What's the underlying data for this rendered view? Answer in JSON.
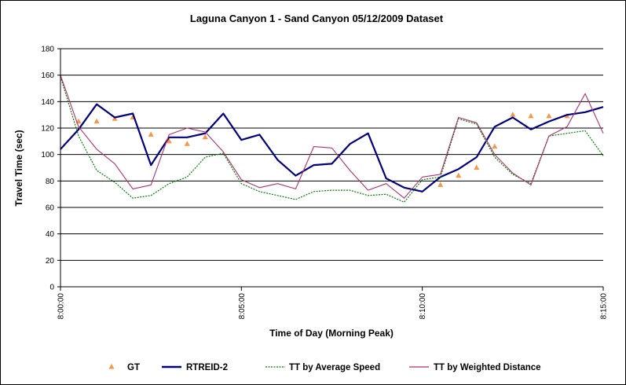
{
  "chart_data": {
    "type": "line",
    "title": "Laguna Canyon 1 - Sand Canyon 05/12/2009 Dataset",
    "xlabel": "Time of Day (Morning Peak)",
    "ylabel": "Travel Time (sec)",
    "ylim": [
      0,
      180
    ],
    "yticks": [
      "0",
      "20",
      "40",
      "60",
      "80",
      "100",
      "120",
      "140",
      "160",
      "180"
    ],
    "xlim": [
      "8:00:00",
      "8:15:00"
    ],
    "xticks": [
      "8:00:00",
      "8:05:00",
      "8:10:00",
      "8:15:00"
    ],
    "grid": "horizontal",
    "legend_position": "bottom",
    "series": [
      {
        "name": "GT",
        "style": "marker",
        "color": "#f79646",
        "x": [
          "8:00:30",
          "8:01:00",
          "8:01:30",
          "8:02:00",
          "8:02:30",
          "8:03:00",
          "8:03:30",
          "8:04:00",
          "8:10:30",
          "8:11:00",
          "8:11:30",
          "8:12:00",
          "8:12:30",
          "8:13:00",
          "8:13:30",
          "8:14:00"
        ],
        "values": [
          125,
          125,
          127,
          128,
          115,
          110,
          108,
          113,
          77,
          84,
          90,
          106,
          130,
          129,
          129,
          129
        ]
      },
      {
        "name": "RTREID-2",
        "style": "solid-thick",
        "color": "#000080",
        "x": [
          "8:00:00",
          "8:00:30",
          "8:01:00",
          "8:01:30",
          "8:02:00",
          "8:02:30",
          "8:03:00",
          "8:03:30",
          "8:04:00",
          "8:04:30",
          "8:05:00",
          "8:05:30",
          "8:06:00",
          "8:06:30",
          "8:07:00",
          "8:07:30",
          "8:08:00",
          "8:08:30",
          "8:09:00",
          "8:09:30",
          "8:10:00",
          "8:10:30",
          "8:11:00",
          "8:11:30",
          "8:12:00",
          "8:12:30",
          "8:13:00",
          "8:13:30",
          "8:14:00",
          "8:14:30",
          "8:15:00"
        ],
        "values": [
          104,
          119,
          138,
          128,
          131,
          92,
          113,
          113,
          116,
          131,
          111,
          115,
          96,
          84,
          92,
          93,
          108,
          116,
          82,
          75,
          72,
          83,
          89,
          98,
          121,
          128,
          119,
          125,
          130,
          132,
          136
        ]
      },
      {
        "name": "TT by Average Speed",
        "style": "dotted",
        "color": "#008000",
        "x": [
          "8:00:00",
          "8:00:30",
          "8:01:00",
          "8:01:30",
          "8:02:00",
          "8:02:30",
          "8:03:00",
          "8:03:30",
          "8:04:00",
          "8:04:30",
          "8:05:00",
          "8:05:30",
          "8:06:00",
          "8:06:30",
          "8:07:00",
          "8:07:30",
          "8:08:00",
          "8:08:30",
          "8:09:00",
          "8:09:30",
          "8:10:00",
          "8:10:30",
          "8:11:00",
          "8:11:30",
          "8:12:00",
          "8:12:30",
          "8:13:00",
          "8:13:30",
          "8:14:00",
          "8:14:30",
          "8:15:00"
        ],
        "values": [
          159,
          114,
          88,
          79,
          67,
          69,
          78,
          83,
          98,
          101,
          78,
          72,
          69,
          66,
          72,
          73,
          73,
          69,
          70,
          64,
          81,
          83,
          127,
          123,
          98,
          85,
          78,
          114,
          116,
          118,
          99
        ]
      },
      {
        "name": "TT by Weighted Distance",
        "style": "solid-thin",
        "color": "#b03070",
        "x": [
          "8:00:00",
          "8:00:30",
          "8:01:00",
          "8:01:30",
          "8:02:00",
          "8:02:30",
          "8:03:00",
          "8:03:30",
          "8:04:00",
          "8:04:30",
          "8:05:00",
          "8:05:30",
          "8:06:00",
          "8:06:30",
          "8:07:00",
          "8:07:30",
          "8:08:00",
          "8:08:30",
          "8:09:00",
          "8:09:30",
          "8:10:00",
          "8:10:30",
          "8:11:00",
          "8:11:30",
          "8:12:00",
          "8:12:30",
          "8:13:00",
          "8:13:30",
          "8:14:00",
          "8:14:30",
          "8:15:00"
        ],
        "values": [
          160,
          121,
          104,
          93,
          74,
          77,
          115,
          120,
          117,
          102,
          81,
          75,
          78,
          74,
          106,
          105,
          88,
          73,
          78,
          67,
          83,
          85,
          128,
          124,
          100,
          86,
          77,
          114,
          121,
          146,
          116
        ]
      }
    ]
  }
}
